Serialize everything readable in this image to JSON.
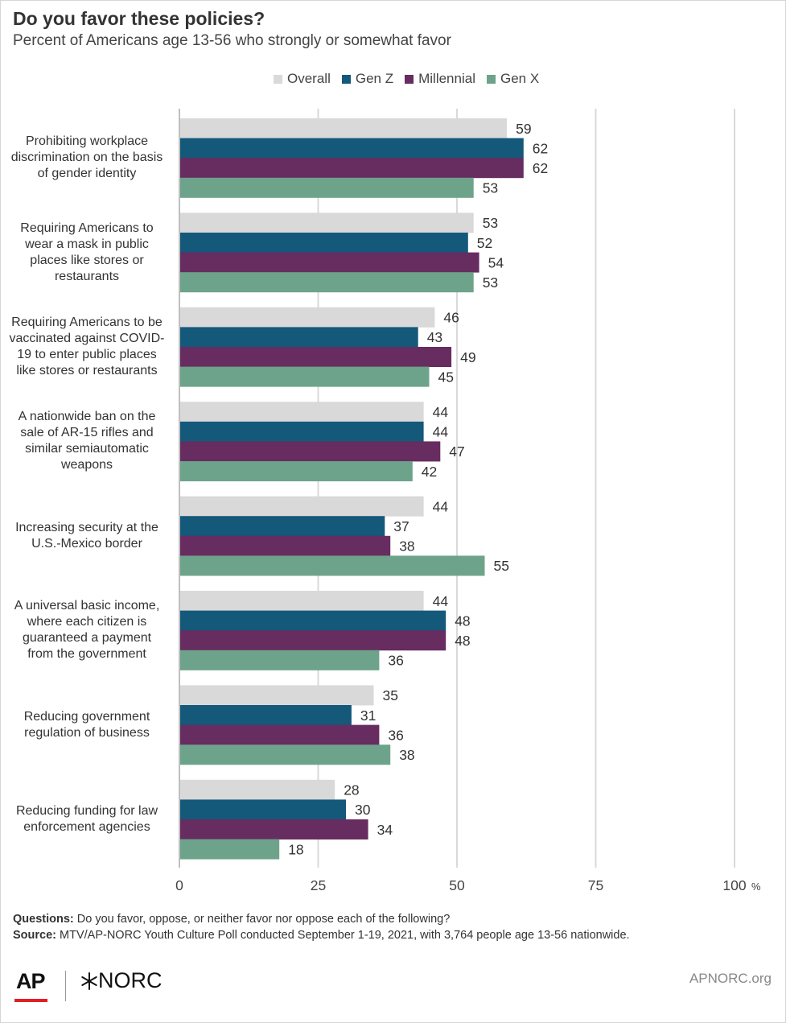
{
  "title": "Do you favor these policies?",
  "subtitle": "Percent of Americans age 13-56 who strongly or somewhat favor",
  "legend": [
    {
      "name": "Overall",
      "color": "#d9d9d9"
    },
    {
      "name": "Gen Z",
      "color": "#14587a"
    },
    {
      "name": "Millennial",
      "color": "#672c60"
    },
    {
      "name": "Gen X",
      "color": "#6da38a"
    }
  ],
  "chart_data": {
    "type": "bar",
    "orientation": "horizontal",
    "categories": [
      "Prohibiting workplace discrimination on the basis of gender identity",
      "Requiring Americans to wear a mask in public places like stores or restaurants",
      "Requiring Americans to be vaccinated against COVID-19 to enter public places like stores or restaurants",
      "A nationwide ban on the sale of AR-15 rifles and similar semiautomatic weapons",
      "Increasing security at the U.S.-Mexico border",
      "A universal basic income, where each citizen is guaranteed a payment from the government",
      "Reducing government regulation of business",
      "Reducing funding for law enforcement agencies"
    ],
    "category_lines": [
      [
        "Prohibiting workplace",
        "discrimination on the basis",
        "of gender identity"
      ],
      [
        "Requiring Americans to",
        "wear a mask in public",
        "places like stores or",
        "restaurants"
      ],
      [
        "Requiring Americans to be",
        "vaccinated against COVID-",
        "19 to enter public places",
        "like stores or restaurants"
      ],
      [
        "A nationwide ban on the",
        "sale of AR-15 rifles and",
        "similar semiautomatic",
        "weapons"
      ],
      [
        "Increasing security at the",
        "U.S.-Mexico border"
      ],
      [
        "A universal basic income,",
        "where each citizen is",
        "guaranteed a payment",
        "from the government"
      ],
      [
        "Reducing government",
        "regulation of business"
      ],
      [
        "Reducing funding for law",
        "enforcement agencies"
      ]
    ],
    "series": [
      {
        "name": "Overall",
        "color": "#d9d9d9",
        "values": [
          59,
          53,
          46,
          44,
          44,
          44,
          35,
          28
        ]
      },
      {
        "name": "Gen Z",
        "color": "#14587a",
        "values": [
          62,
          52,
          43,
          44,
          37,
          48,
          31,
          30
        ]
      },
      {
        "name": "Millennial",
        "color": "#672c60",
        "values": [
          62,
          54,
          49,
          47,
          38,
          48,
          36,
          34
        ]
      },
      {
        "name": "Gen X",
        "color": "#6da38a",
        "values": [
          53,
          53,
          45,
          42,
          55,
          36,
          38,
          18
        ]
      }
    ],
    "xlim": [
      0,
      100
    ],
    "xticks": [
      "0",
      "25",
      "50",
      "75",
      "100"
    ],
    "x_unit": "%",
    "grid": true,
    "legend_position": "top"
  },
  "footer": {
    "questions_label": "Questions:",
    "questions_text": "Do you favor, oppose, or neither favor nor oppose each of the following?",
    "source_label": "Source:",
    "source_text": "MTV/AP-NORC Youth Culture Poll conducted September 1-19, 2021, with 3,764 people age 13-56 nationwide."
  },
  "logos": {
    "ap": "AP",
    "norc": "NORC",
    "site": "APNORC.org"
  }
}
